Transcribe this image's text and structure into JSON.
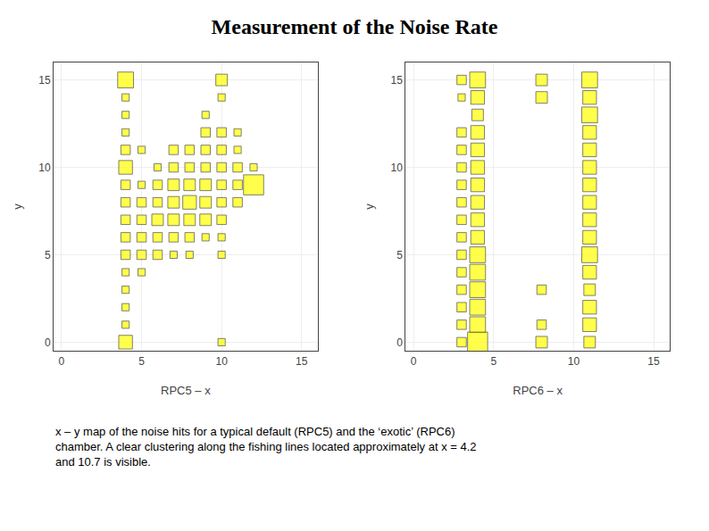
{
  "chart_data": [
    {
      "type": "scatter",
      "title": "Measurement of the Noise Rate",
      "annotation": "x – y map of the noise hits for a typical default (RPC5) and the ‘exotic’ (RPC6)\nchamber. A clear clustering along the fishing lines located approximately at x = 4.2\nand 10.7 is visible.",
      "xlabel": "RPC5 – x",
      "ylabel": "y",
      "xlim": [
        -0.5,
        16
      ],
      "ylim": [
        -0.5,
        16
      ],
      "xticks": [
        0,
        5,
        10,
        15
      ],
      "yticks": [
        0,
        5,
        10,
        15
      ],
      "marker": "square",
      "color": "#ffff00",
      "x": [
        4,
        10,
        4,
        10,
        4,
        9,
        4,
        9,
        10,
        11,
        4,
        5,
        7,
        8,
        9,
        10,
        11,
        4,
        6,
        7,
        8,
        9,
        10,
        11,
        12,
        4,
        5,
        6,
        7,
        8,
        9,
        10,
        11,
        12,
        4,
        5,
        6,
        7,
        8,
        9,
        10,
        11,
        4,
        5,
        6,
        7,
        8,
        9,
        10,
        4,
        5,
        6,
        7,
        8,
        9,
        10,
        4,
        5,
        6,
        7,
        8,
        10,
        4,
        5,
        4,
        4,
        4,
        4,
        10
      ],
      "y": [
        15,
        15,
        14,
        14,
        13,
        13,
        12,
        12,
        12,
        12,
        11,
        11,
        11,
        11,
        11,
        11,
        11,
        10,
        10,
        10,
        10,
        10,
        10,
        10,
        10,
        9,
        9,
        9,
        9,
        9,
        9,
        9,
        9,
        9,
        8,
        8,
        8,
        8,
        8,
        8,
        8,
        8,
        7,
        7,
        7,
        7,
        7,
        7,
        7,
        6,
        6,
        6,
        6,
        6,
        6,
        6,
        5,
        5,
        5,
        5,
        5,
        5,
        4,
        4,
        3,
        2,
        1,
        0,
        0
      ],
      "sizes": [
        6,
        4,
        2,
        2,
        2,
        2,
        2,
        3,
        3,
        2,
        3,
        2,
        3,
        3,
        3,
        3,
        2,
        5,
        2,
        3,
        3,
        3,
        3,
        3,
        2,
        3,
        2,
        3,
        4,
        4,
        4,
        3,
        3,
        8,
        3,
        3,
        3,
        4,
        5,
        4,
        3,
        3,
        3,
        3,
        4,
        4,
        4,
        4,
        3,
        3,
        3,
        3,
        3,
        3,
        2,
        2,
        3,
        3,
        3,
        2,
        2,
        2,
        2,
        2,
        2,
        2,
        2,
        5,
        2
      ]
    },
    {
      "type": "scatter",
      "xlabel": "RPC6 – x",
      "ylabel": "y",
      "xlim": [
        -0.5,
        16
      ],
      "ylim": [
        -0.5,
        16
      ],
      "xticks": [
        0,
        5,
        10,
        15
      ],
      "yticks": [
        0,
        5,
        10,
        15
      ],
      "marker": "square",
      "color": "#ffff00",
      "x": [
        3,
        4,
        8,
        11,
        3,
        4,
        8,
        11,
        4,
        11,
        3,
        4,
        11,
        3,
        4,
        11,
        3,
        4,
        11,
        3,
        4,
        11,
        3,
        4,
        11,
        3,
        4,
        11,
        3,
        4,
        11,
        3,
        4,
        11,
        3,
        4,
        11,
        3,
        4,
        8,
        11,
        3,
        4,
        11,
        3,
        4,
        8,
        11,
        3,
        4,
        8,
        11
      ],
      "y": [
        15,
        15,
        15,
        15,
        14,
        14,
        14,
        14,
        13,
        13,
        12,
        12,
        12,
        11,
        11,
        11,
        10,
        10,
        10,
        9,
        9,
        9,
        8,
        8,
        8,
        7,
        7,
        7,
        6,
        6,
        6,
        5,
        5,
        5,
        4,
        4,
        4,
        3,
        3,
        3,
        3,
        2,
        2,
        2,
        1,
        1,
        1,
        1,
        0,
        0,
        0,
        0
      ],
      "sizes": [
        3,
        6,
        4,
        6,
        2,
        5,
        4,
        5,
        4,
        6,
        3,
        5,
        5,
        3,
        5,
        5,
        3,
        5,
        5,
        3,
        5,
        5,
        3,
        5,
        5,
        3,
        5,
        5,
        3,
        5,
        5,
        3,
        6,
        6,
        3,
        6,
        5,
        3,
        6,
        3,
        4,
        3,
        6,
        5,
        3,
        6,
        3,
        5,
        3,
        8,
        4,
        4
      ]
    }
  ]
}
